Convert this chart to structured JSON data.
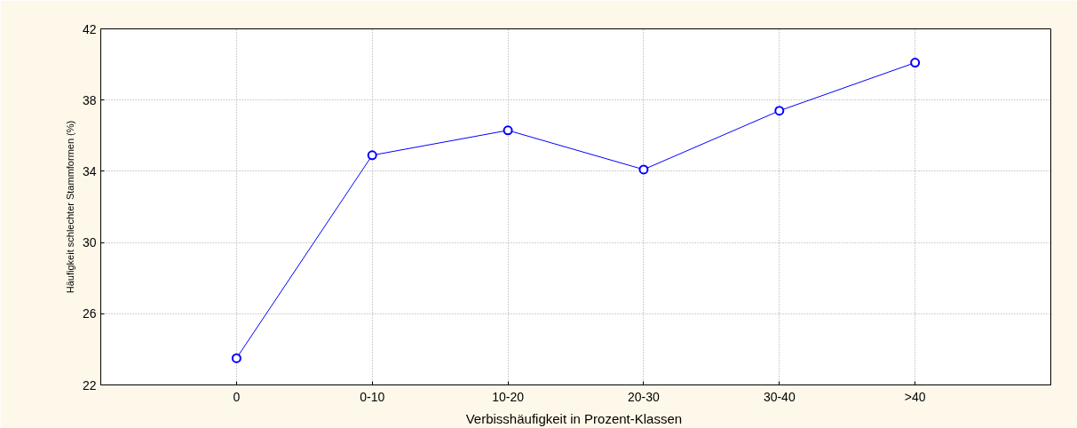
{
  "chart_data": {
    "type": "line",
    "xlabel": "Verbisshäufigkeit in  Prozent-Klassen",
    "ylabel": "Häufigkeit schlechter Stammformen (%)",
    "categories": [
      "0",
      "0-10",
      "10-20",
      "20-30",
      "30-40",
      ">40"
    ],
    "series": [
      {
        "color": "#0000ff",
        "values": [
          23.5,
          34.9,
          36.3,
          34.1,
          37.4,
          40.1
        ]
      }
    ],
    "ylim": [
      22,
      42
    ],
    "yticks": [
      22,
      26,
      30,
      34,
      38,
      42
    ],
    "grid": true,
    "marker": "circle",
    "line_style": "solid"
  }
}
